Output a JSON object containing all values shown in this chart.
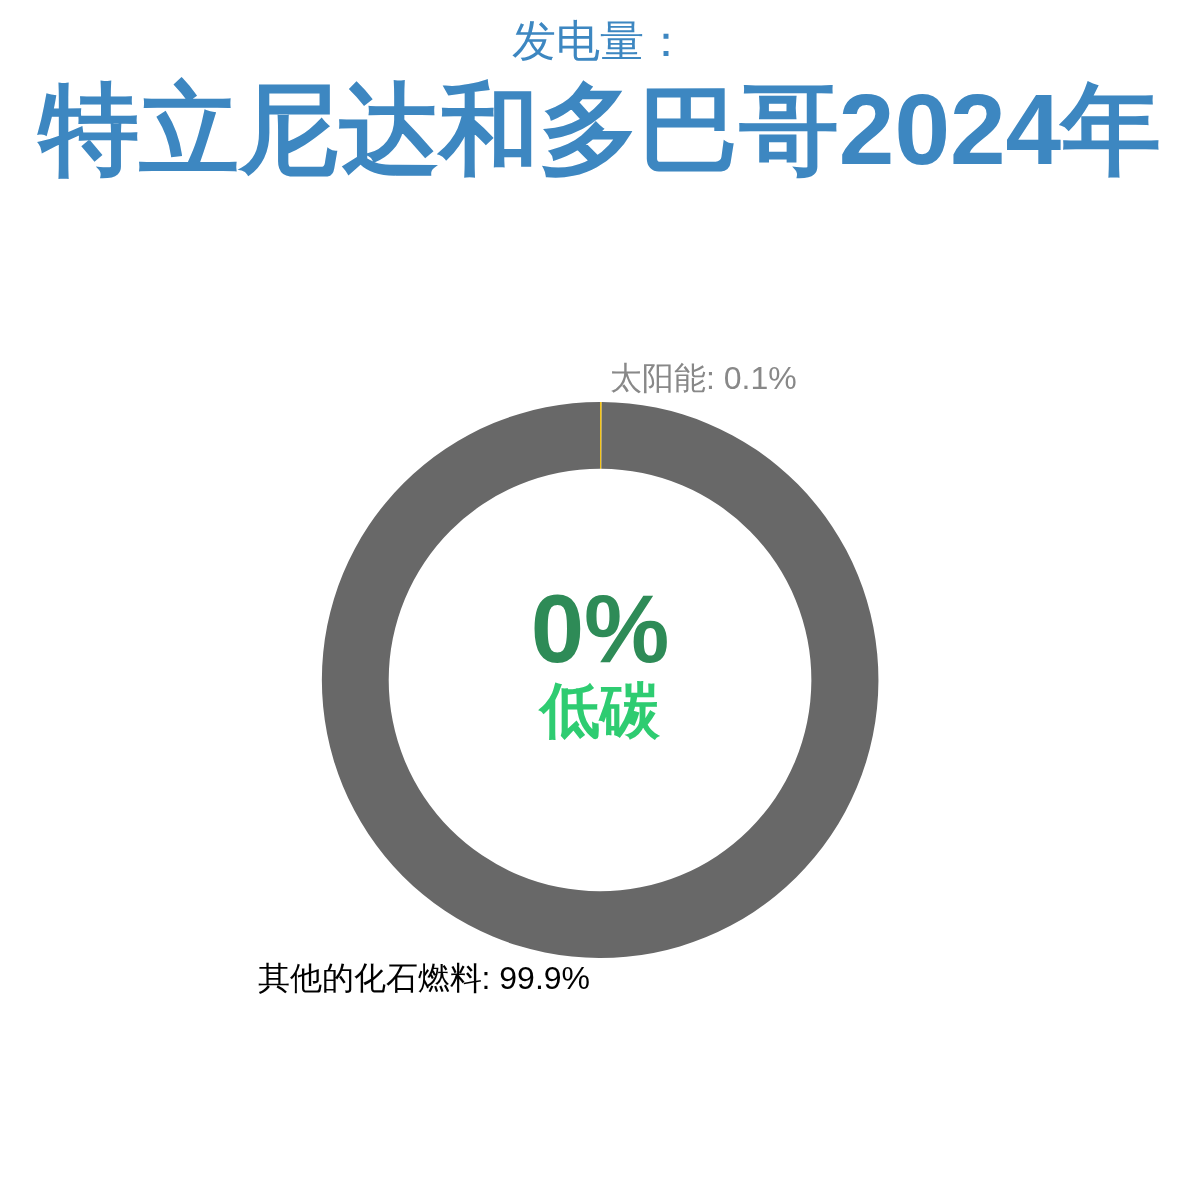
{
  "chart_data": {
    "type": "donut",
    "subtitle": "发电量：",
    "title": "特立尼达和多巴哥2024年",
    "categories": [
      "太阳能",
      "其他的化石燃料"
    ],
    "values": [
      0.1,
      99.9
    ],
    "colors": [
      "#f5c518",
      "#686868"
    ],
    "value_labels": [
      "0.1%",
      "99.9%"
    ],
    "annotations": [
      "0%",
      "低碳"
    ],
    "legend": false
  }
}
